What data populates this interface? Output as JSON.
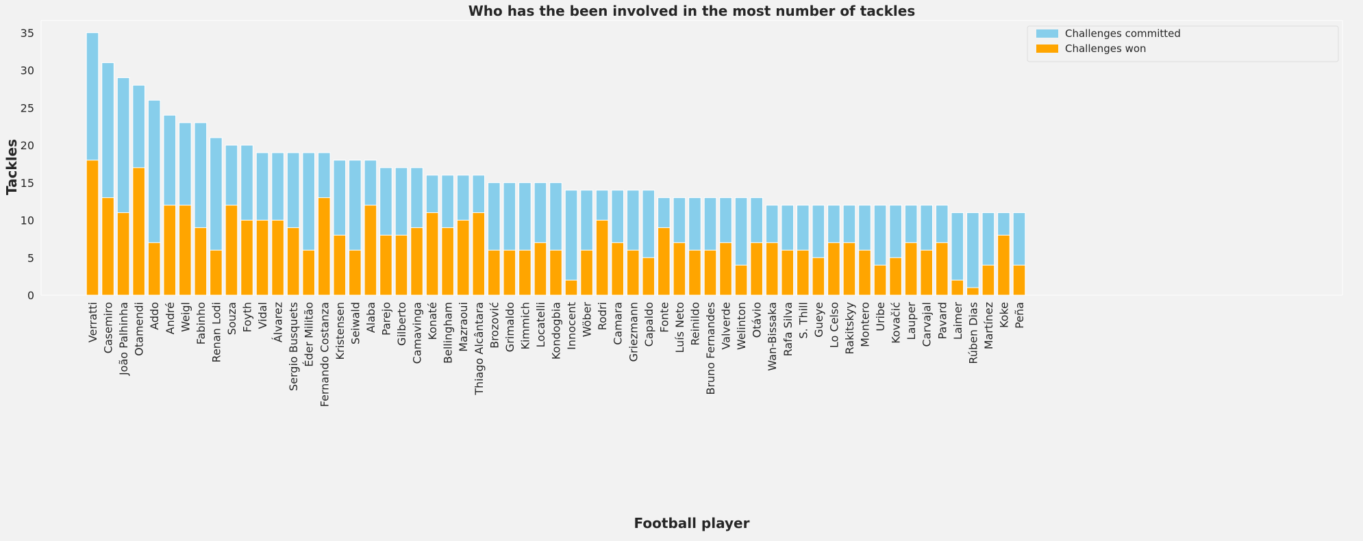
{
  "chart_data": {
    "type": "bar",
    "title": "Who has the been involved in the most number of tackles",
    "xlabel": "Football player",
    "ylabel": "Tackles",
    "ylim": [
      0,
      36.75
    ],
    "yticks": [
      0,
      5,
      10,
      15,
      20,
      25,
      30,
      35
    ],
    "grid": false,
    "legend_position": "top-right",
    "categories": [
      "Verratti",
      "Casemiro",
      "João Palhinha",
      "Otamendi",
      "Addo",
      "André",
      "Weigl",
      "Fabinho",
      "Renan Lodi",
      "Souza",
      "Foyth",
      "Vidal",
      "Álvarez",
      "Sergio Busquets",
      "Éder Militão",
      "Fernando Costanza",
      "Kristensen",
      "Seiwald",
      "Alaba",
      "Parejo",
      "Gilberto",
      "Camavinga",
      "Konaté",
      "Bellingham",
      "Mazraoui",
      "Thiago Alcântara",
      "Brozović",
      "Grimaldo",
      "Kimmich",
      "Locatelli",
      "Kondogbia",
      "Innocent",
      "Wöber",
      "Rodri",
      "Camara",
      "Griezmann",
      "Capaldo",
      "Fonte",
      "Luís Neto",
      "Reinildo",
      "Bruno Fernandes",
      "Valverde",
      "Welinton",
      "Otávio",
      "Wan-Bissaka",
      "Rafa Silva",
      "S. Thill",
      "Gueye",
      "Lo Celso",
      "Rakitskyy",
      "Montero",
      "Uribe",
      "Kovačić",
      "Lauper",
      "Carvajal",
      "Pavard",
      "Laimer",
      "Rúben Dias",
      "Martínez",
      "Koke",
      "Peña"
    ],
    "series": [
      {
        "name": "Challenges committed",
        "color": "#87ceeb",
        "values": [
          35,
          31,
          29,
          28,
          26,
          24,
          23,
          23,
          21,
          20,
          20,
          19,
          19,
          19,
          19,
          19,
          18,
          18,
          18,
          17,
          17,
          17,
          16,
          16,
          16,
          16,
          15,
          15,
          15,
          15,
          15,
          14,
          14,
          14,
          14,
          14,
          14,
          13,
          13,
          13,
          13,
          13,
          13,
          13,
          12,
          12,
          12,
          12,
          12,
          12,
          12,
          12,
          12,
          12,
          12,
          12,
          11,
          11,
          11,
          11,
          11
        ]
      },
      {
        "name": "Challenges won",
        "color": "#ffa500",
        "values": [
          18,
          13,
          11,
          17,
          7,
          12,
          12,
          9,
          6,
          12,
          10,
          10,
          10,
          9,
          6,
          13,
          8,
          6,
          12,
          8,
          8,
          9,
          11,
          9,
          10,
          11,
          6,
          6,
          6,
          7,
          6,
          2,
          6,
          10,
          7,
          6,
          5,
          9,
          7,
          6,
          6,
          7,
          4,
          7,
          7,
          6,
          6,
          5,
          7,
          7,
          6,
          4,
          5,
          7,
          6,
          7,
          2,
          1,
          4,
          8,
          4
        ]
      }
    ]
  }
}
